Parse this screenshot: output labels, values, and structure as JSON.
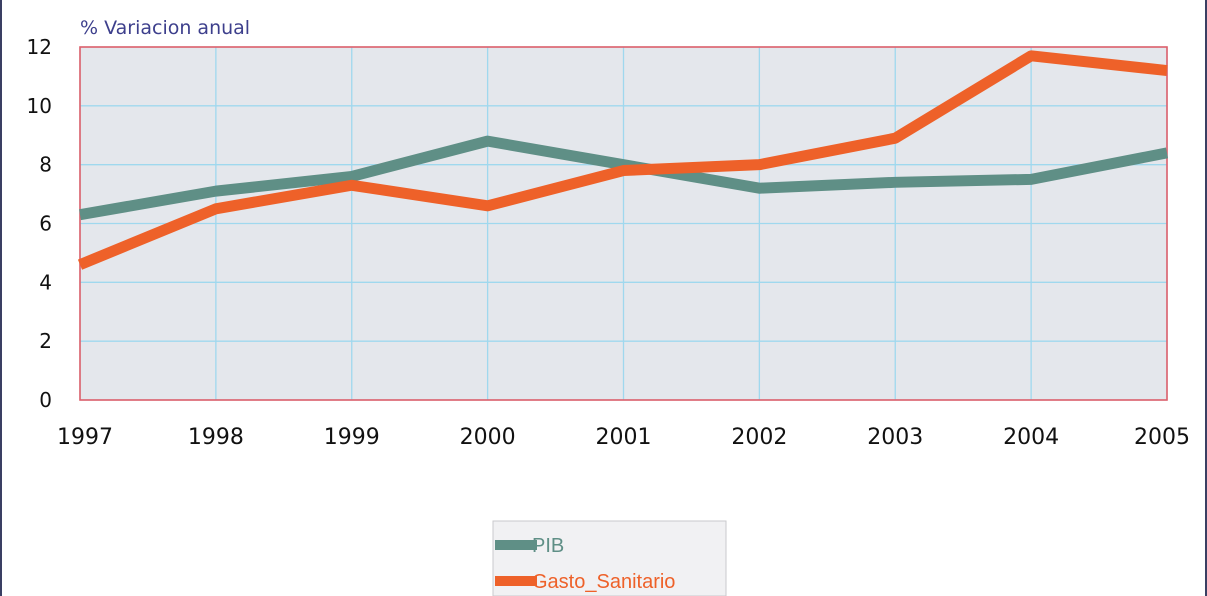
{
  "chart_data": {
    "type": "line",
    "title": "% Variacion anual",
    "xlabel": "",
    "ylabel": "",
    "categories": [
      "1997",
      "1998",
      "1999",
      "2000",
      "2001",
      "2002",
      "2003",
      "2004",
      "2005"
    ],
    "ylim": [
      0,
      12
    ],
    "yticks": [
      0,
      2,
      4,
      6,
      8,
      10,
      12
    ],
    "grid": true,
    "legend_position": "bottom",
    "series": [
      {
        "name": "PIB",
        "color": "#5f8f86",
        "values": [
          6.3,
          7.1,
          7.6,
          8.8,
          8.0,
          7.2,
          7.4,
          7.5,
          8.4
        ]
      },
      {
        "name": "Gasto_Sanitario",
        "color": "#ee6129",
        "values": [
          4.6,
          6.5,
          7.3,
          6.6,
          7.8,
          8.0,
          8.9,
          11.7,
          11.2
        ]
      }
    ],
    "colors": {
      "plot_background": "#e4e7ec",
      "grid": "#9fd8ee",
      "plot_border": "#e0606b",
      "title": "#3d3f8c"
    }
  }
}
